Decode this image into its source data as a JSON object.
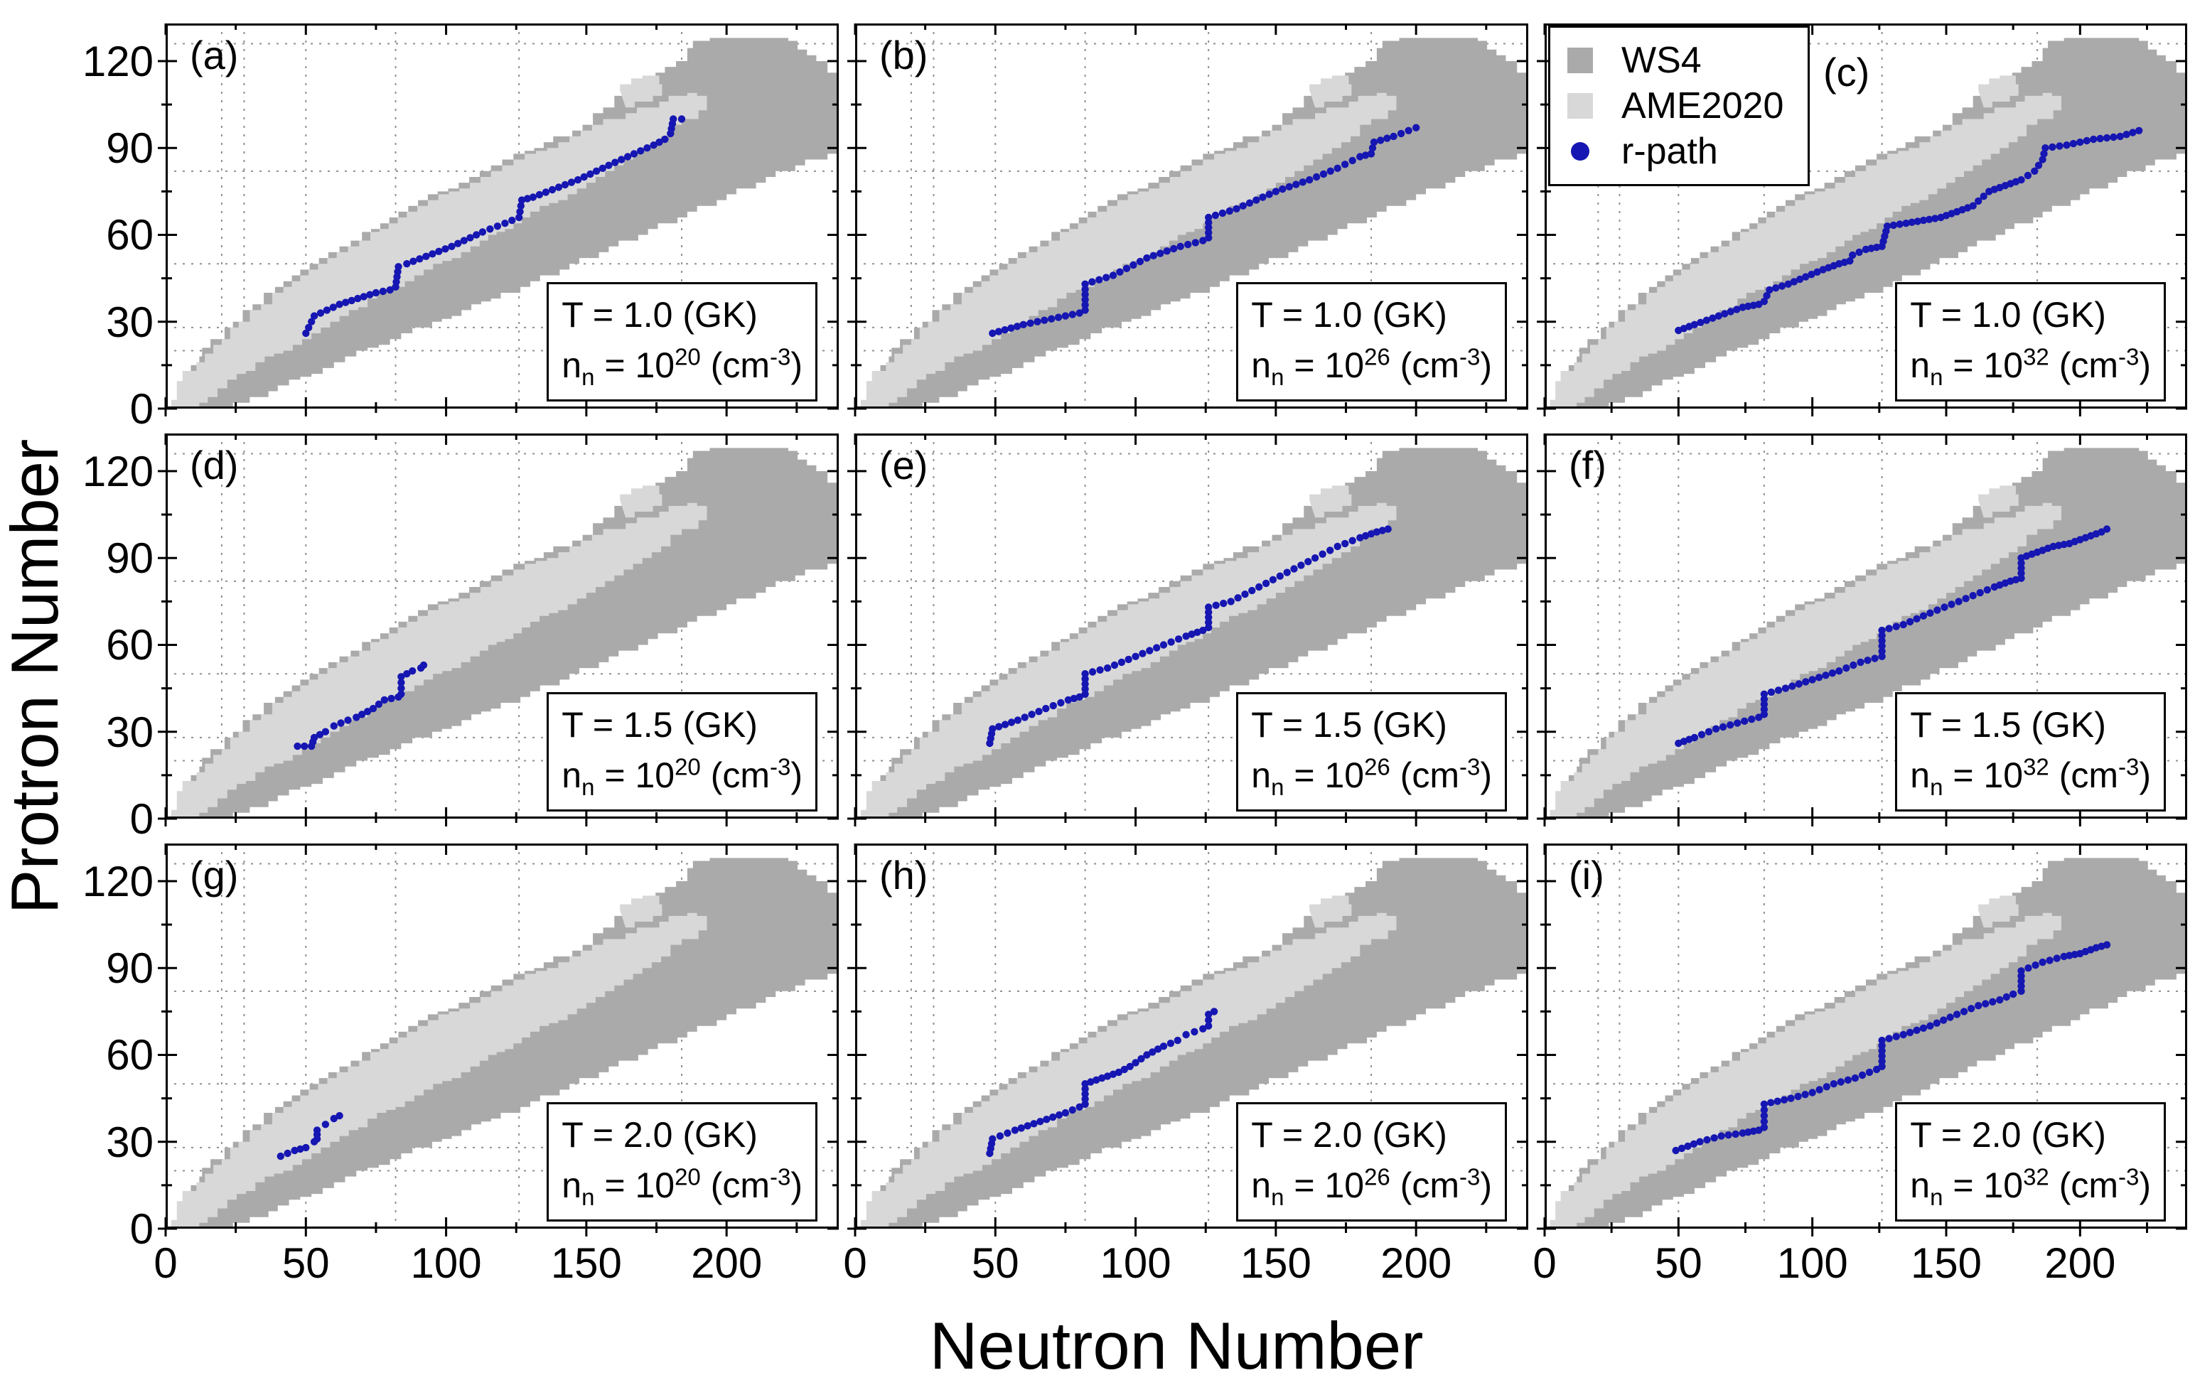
{
  "axes": {
    "x_label": "Neutron Number",
    "y_label": "Protron Number",
    "x_tick_labels": [
      "0",
      "50",
      "100",
      "150",
      "200"
    ],
    "y_tick_labels": [
      "0",
      "30",
      "60",
      "90",
      "120"
    ]
  },
  "legend": {
    "items": [
      {
        "label": "WS4",
        "marker": "square",
        "color": "#aaaaaa"
      },
      {
        "label": "AME2020",
        "marker": "square",
        "color": "#d8d8d8"
      },
      {
        "label": "r-path",
        "marker": "dot",
        "color": "#1616b2"
      }
    ],
    "host_panel": "(c)"
  },
  "annotation_format": {
    "t_prefix": "T = ",
    "t_unit": " (GK)",
    "n_symbol": "n",
    "n_subscript": "n",
    "equals": " = ",
    "base": "10",
    "unit_open": " (cm",
    "unit_exponent": "-3",
    "unit_close": ")"
  },
  "chart_data": {
    "type": "scatter",
    "title": "",
    "xlabel": "Neutron Number",
    "ylabel": "Protron Number",
    "xlim": [
      0,
      240
    ],
    "ylim": [
      0,
      133
    ],
    "x_major_ticks": [
      0,
      50,
      100,
      150,
      200
    ],
    "x_minor_ticks": [
      25,
      75,
      125,
      175,
      225
    ],
    "y_major_ticks": [
      0,
      30,
      60,
      90,
      120
    ],
    "y_minor_ticks": [
      15,
      45,
      75,
      105
    ],
    "grid_x": [
      20,
      28,
      50,
      82,
      126,
      184
    ],
    "grid_y": [
      20,
      28,
      50,
      82,
      126
    ],
    "grid_note": "dotted gridlines at magic numbers",
    "colors": {
      "ws4": "#aaaaaa",
      "ame2020": "#d8d8d8",
      "r_path": "#1616b2"
    },
    "regions": {
      "ws4": {
        "label": "WS4",
        "points": [
          [
            4,
            0
          ],
          [
            6,
            6
          ],
          [
            9,
            12
          ],
          [
            13,
            18
          ],
          [
            18,
            24
          ],
          [
            24,
            30
          ],
          [
            31,
            36
          ],
          [
            39,
            42
          ],
          [
            48,
            48
          ],
          [
            58,
            54
          ],
          [
            70,
            61
          ],
          [
            83,
            68
          ],
          [
            97,
            75
          ],
          [
            112,
            82
          ],
          [
            128,
            89
          ],
          [
            145,
            96
          ],
          [
            156,
            104
          ],
          [
            168,
            113
          ],
          [
            178,
            118
          ],
          [
            186,
            122
          ],
          [
            190,
            127
          ],
          [
            222,
            127
          ],
          [
            232,
            120
          ],
          [
            240,
            113
          ],
          [
            240,
            88
          ],
          [
            228,
            84
          ],
          [
            214,
            78
          ],
          [
            200,
            72
          ],
          [
            186,
            66
          ],
          [
            172,
            60
          ],
          [
            158,
            54
          ],
          [
            144,
            48
          ],
          [
            130,
            42
          ],
          [
            116,
            37
          ],
          [
            102,
            31
          ],
          [
            88,
            26
          ],
          [
            76,
            21
          ],
          [
            64,
            16
          ],
          [
            52,
            11
          ],
          [
            40,
            6
          ],
          [
            30,
            2
          ],
          [
            24,
            0
          ]
        ]
      },
      "ame2020": {
        "label": "AME2020",
        "points": [
          [
            2,
            0
          ],
          [
            4,
            6
          ],
          [
            8,
            13
          ],
          [
            14,
            19
          ],
          [
            20,
            24
          ],
          [
            26,
            30
          ],
          [
            34,
            36
          ],
          [
            42,
            42
          ],
          [
            51,
            48
          ],
          [
            61,
            54
          ],
          [
            73,
            61
          ],
          [
            86,
            68
          ],
          [
            101,
            75
          ],
          [
            116,
            82
          ],
          [
            132,
            89
          ],
          [
            148,
            96
          ],
          [
            164,
            102
          ],
          [
            176,
            106
          ],
          [
            186,
            109
          ],
          [
            193,
            106
          ],
          [
            188,
            100
          ],
          [
            180,
            94
          ],
          [
            170,
            88
          ],
          [
            160,
            82
          ],
          [
            150,
            76
          ],
          [
            140,
            71
          ],
          [
            130,
            66
          ],
          [
            121,
            61
          ],
          [
            112,
            56
          ],
          [
            102,
            51
          ],
          [
            92,
            46
          ],
          [
            82,
            41
          ],
          [
            72,
            35
          ],
          [
            62,
            30
          ],
          [
            52,
            24
          ],
          [
            42,
            19
          ],
          [
            32,
            13
          ],
          [
            22,
            7
          ],
          [
            15,
            2
          ],
          [
            12,
            0
          ]
        ],
        "island": [
          [
            164,
            104
          ],
          [
            177,
            109
          ],
          [
            174,
            115
          ],
          [
            162,
            110
          ]
        ]
      }
    },
    "panels": [
      {
        "id": "(a)",
        "row": 0,
        "col": 0,
        "temperature": "1.0",
        "density_exponent": "20",
        "path": [
          [
            50,
            26
          ],
          [
            53,
            32
          ],
          [
            62,
            36
          ],
          [
            75,
            40
          ],
          [
            80,
            41
          ],
          [
            82,
            42
          ],
          [
            83,
            49
          ],
          [
            86,
            50
          ],
          [
            102,
            56
          ],
          [
            113,
            61
          ],
          [
            121,
            64
          ],
          [
            126,
            66
          ],
          [
            127,
            72
          ],
          [
            131,
            73
          ],
          [
            147,
            79
          ],
          [
            158,
            84
          ],
          [
            167,
            88
          ],
          [
            174,
            91
          ],
          [
            178,
            93
          ],
          [
            180,
            95
          ],
          [
            181,
            100
          ],
          [
            184,
            100
          ]
        ]
      },
      {
        "id": "(b)",
        "row": 0,
        "col": 1,
        "temperature": "1.0",
        "density_exponent": "26",
        "path": [
          [
            49,
            26
          ],
          [
            60,
            29
          ],
          [
            70,
            31
          ],
          [
            80,
            33
          ],
          [
            82,
            34
          ],
          [
            82,
            43
          ],
          [
            92,
            46
          ],
          [
            104,
            52
          ],
          [
            116,
            56
          ],
          [
            124,
            58
          ],
          [
            126,
            59
          ],
          [
            126,
            66
          ],
          [
            136,
            69
          ],
          [
            150,
            75
          ],
          [
            162,
            79
          ],
          [
            172,
            83
          ],
          [
            180,
            87
          ],
          [
            184,
            88
          ],
          [
            185,
            92
          ],
          [
            192,
            94
          ],
          [
            200,
            97
          ]
        ]
      },
      {
        "id": "(c)",
        "row": 0,
        "col": 2,
        "temperature": "1.0",
        "density_exponent": "32",
        "path": [
          [
            50,
            27
          ],
          [
            56,
            29
          ],
          [
            65,
            32
          ],
          [
            74,
            35
          ],
          [
            80,
            36
          ],
          [
            82,
            37
          ],
          [
            84,
            41
          ],
          [
            91,
            43
          ],
          [
            104,
            48
          ],
          [
            110,
            50
          ],
          [
            114,
            51
          ],
          [
            115,
            53
          ],
          [
            120,
            55
          ],
          [
            126,
            56
          ],
          [
            128,
            63
          ],
          [
            135,
            64
          ],
          [
            148,
            66
          ],
          [
            154,
            68
          ],
          [
            160,
            70
          ],
          [
            166,
            75
          ],
          [
            172,
            77
          ],
          [
            178,
            79
          ],
          [
            183,
            82
          ],
          [
            186,
            86
          ],
          [
            187,
            90
          ],
          [
            195,
            91
          ],
          [
            205,
            93
          ],
          [
            215,
            94
          ],
          [
            222,
            96
          ]
        ]
      },
      {
        "id": "(d)",
        "row": 1,
        "col": 0,
        "temperature": "1.5",
        "density_exponent": "20",
        "path": [
          [
            47,
            25
          ],
          [
            52,
            25
          ],
          [
            53,
            28
          ],
          [
            57,
            30
          ],
          [
            60,
            32
          ],
          [
            65,
            34
          ],
          [
            68,
            35
          ],
          [
            74,
            38
          ],
          [
            78,
            41
          ],
          [
            83,
            42
          ],
          [
            84,
            43
          ],
          [
            84,
            49
          ],
          [
            88,
            51
          ],
          [
            91,
            52
          ],
          [
            92,
            53
          ]
        ]
      },
      {
        "id": "(e)",
        "row": 1,
        "col": 1,
        "temperature": "1.5",
        "density_exponent": "26",
        "path": [
          [
            48,
            26
          ],
          [
            49,
            31
          ],
          [
            58,
            34
          ],
          [
            68,
            38
          ],
          [
            76,
            41
          ],
          [
            80,
            42
          ],
          [
            82,
            43
          ],
          [
            82,
            50
          ],
          [
            90,
            52
          ],
          [
            100,
            56
          ],
          [
            110,
            60
          ],
          [
            118,
            63
          ],
          [
            124,
            65
          ],
          [
            126,
            66
          ],
          [
            126,
            73
          ],
          [
            134,
            75
          ],
          [
            144,
            80
          ],
          [
            154,
            85
          ],
          [
            164,
            90
          ],
          [
            172,
            94
          ],
          [
            180,
            97
          ],
          [
            186,
            99
          ],
          [
            190,
            100
          ]
        ]
      },
      {
        "id": "(f)",
        "row": 1,
        "col": 2,
        "temperature": "1.5",
        "density_exponent": "32",
        "path": [
          [
            50,
            26
          ],
          [
            56,
            28
          ],
          [
            64,
            31
          ],
          [
            72,
            33
          ],
          [
            80,
            35
          ],
          [
            82,
            36
          ],
          [
            82,
            43
          ],
          [
            90,
            45
          ],
          [
            100,
            48
          ],
          [
            110,
            51
          ],
          [
            118,
            54
          ],
          [
            126,
            56
          ],
          [
            126,
            65
          ],
          [
            134,
            67
          ],
          [
            144,
            71
          ],
          [
            152,
            74
          ],
          [
            160,
            77
          ],
          [
            168,
            80
          ],
          [
            174,
            82
          ],
          [
            178,
            83
          ],
          [
            178,
            90
          ],
          [
            184,
            92
          ],
          [
            190,
            94
          ],
          [
            196,
            95
          ],
          [
            202,
            97
          ],
          [
            208,
            99
          ],
          [
            210,
            100
          ]
        ]
      },
      {
        "id": "(g)",
        "row": 2,
        "col": 0,
        "temperature": "2.0",
        "density_exponent": "20",
        "path": [
          [
            41,
            25
          ],
          [
            46,
            27
          ],
          [
            50,
            28
          ],
          [
            53,
            30
          ],
          [
            54,
            31
          ],
          [
            54,
            34
          ],
          [
            57,
            36
          ],
          [
            60,
            38
          ],
          [
            62,
            39
          ]
        ]
      },
      {
        "id": "(h)",
        "row": 2,
        "col": 1,
        "temperature": "2.0",
        "density_exponent": "26",
        "path": [
          [
            48,
            26
          ],
          [
            49,
            31
          ],
          [
            57,
            34
          ],
          [
            66,
            37
          ],
          [
            75,
            40
          ],
          [
            80,
            42
          ],
          [
            82,
            43
          ],
          [
            82,
            50
          ],
          [
            88,
            52
          ],
          [
            94,
            54
          ],
          [
            98,
            56
          ],
          [
            104,
            60
          ],
          [
            110,
            63
          ],
          [
            115,
            65
          ],
          [
            118,
            67
          ],
          [
            121,
            68
          ],
          [
            124,
            69
          ],
          [
            126,
            70
          ],
          [
            126,
            74
          ],
          [
            128,
            75
          ]
        ]
      },
      {
        "id": "(i)",
        "row": 2,
        "col": 2,
        "temperature": "2.0",
        "density_exponent": "32",
        "path": [
          [
            49,
            27
          ],
          [
            58,
            30
          ],
          [
            66,
            32
          ],
          [
            74,
            33
          ],
          [
            80,
            34
          ],
          [
            82,
            35
          ],
          [
            82,
            43
          ],
          [
            92,
            45
          ],
          [
            100,
            47
          ],
          [
            108,
            50
          ],
          [
            116,
            52
          ],
          [
            124,
            55
          ],
          [
            126,
            56
          ],
          [
            126,
            65
          ],
          [
            134,
            67
          ],
          [
            144,
            70
          ],
          [
            154,
            74
          ],
          [
            162,
            77
          ],
          [
            170,
            79
          ],
          [
            175,
            81
          ],
          [
            178,
            82
          ],
          [
            178,
            89
          ],
          [
            186,
            92
          ],
          [
            194,
            94
          ],
          [
            200,
            95
          ],
          [
            206,
            97
          ],
          [
            210,
            98
          ]
        ]
      }
    ]
  }
}
